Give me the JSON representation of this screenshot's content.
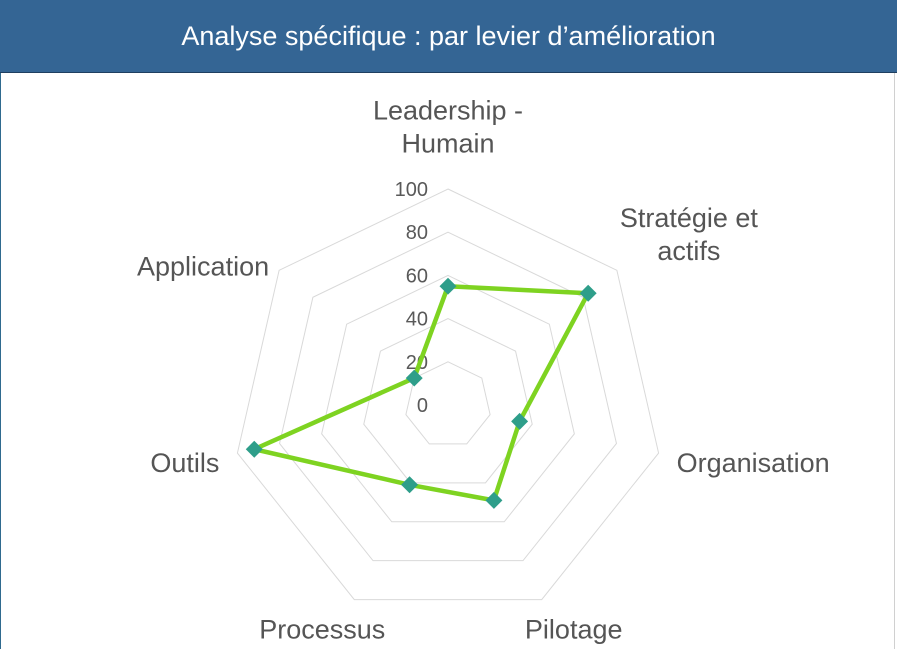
{
  "header": {
    "title": "Analyse spécifique : par levier d’amélioration"
  },
  "colors": {
    "header_bg": "#346594",
    "series_line": "#7ed321",
    "marker": "#2e9e8a",
    "grid": "#d9d9d9",
    "label_text": "#555555"
  },
  "chart_data": {
    "type": "radar",
    "title": "",
    "categories": [
      [
        "Leadership -",
        "Humain"
      ],
      [
        "Stratégie et",
        "actifs"
      ],
      [
        "Organisation"
      ],
      [
        "Pilotage"
      ],
      [
        "Processus"
      ],
      [
        "Outils"
      ],
      [
        "Application"
      ]
    ],
    "series": [
      {
        "values": [
          55,
          83,
          34,
          49,
          41,
          92,
          20
        ]
      }
    ],
    "rlim": [
      0,
      100
    ],
    "ticks": [
      "0",
      "20",
      "40",
      "60",
      "80",
      "100"
    ],
    "tick_values": [
      0,
      20,
      40,
      60,
      80,
      100
    ],
    "grid": true,
    "legend": "none"
  }
}
